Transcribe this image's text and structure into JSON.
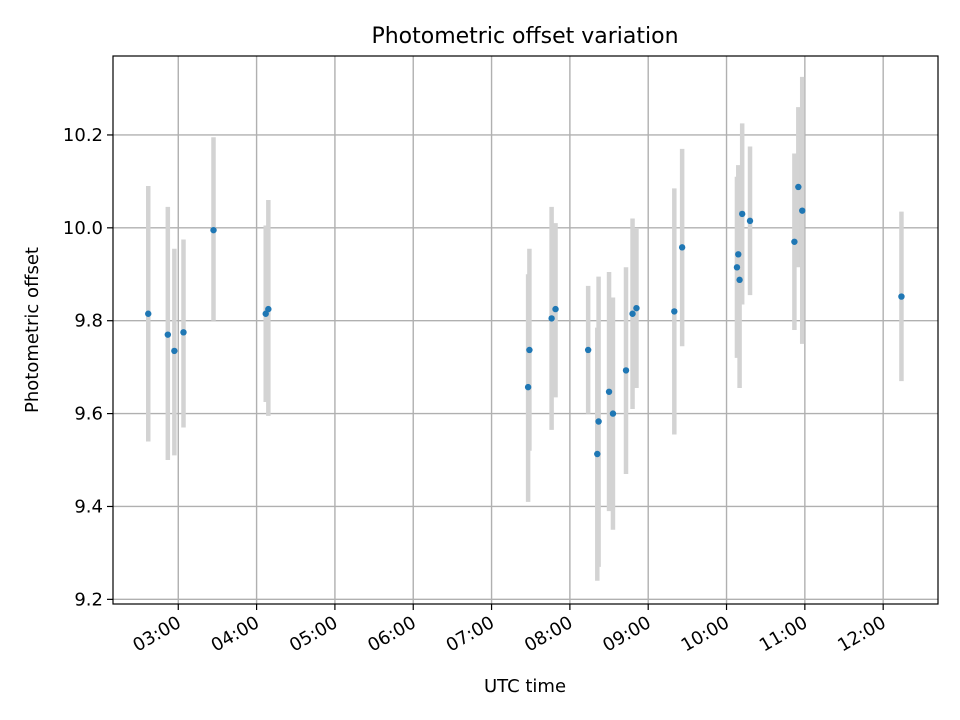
{
  "chart_data": {
    "type": "scatter",
    "title": "Photometric offset variation",
    "xlabel": "UTC time",
    "ylabel": "Photometric offset",
    "xlim": [
      "02:10",
      "12:42"
    ],
    "ylim": [
      9.19,
      10.37
    ],
    "grid": true,
    "x_ticks": [
      "03:00",
      "04:00",
      "05:00",
      "06:00",
      "07:00",
      "08:00",
      "09:00",
      "10:00",
      "11:00",
      "12:00"
    ],
    "y_ticks": [
      "9.2",
      "9.4",
      "9.6",
      "9.8",
      "10.0",
      "10.2"
    ],
    "point_color": "#1f77b4",
    "errorbar_color": "#d3d3d3",
    "points": [
      {
        "x": "02:37",
        "y": 9.815,
        "lo": 9.54,
        "hi": 10.09
      },
      {
        "x": "02:52",
        "y": 9.77,
        "lo": 9.5,
        "hi": 10.045
      },
      {
        "x": "02:57",
        "y": 9.735,
        "lo": 9.51,
        "hi": 9.955
      },
      {
        "x": "03:04",
        "y": 9.775,
        "lo": 9.57,
        "hi": 9.975
      },
      {
        "x": "03:27",
        "y": 9.995,
        "lo": 9.8,
        "hi": 10.195
      },
      {
        "x": "04:07",
        "y": 9.815,
        "lo": 9.625,
        "hi": 10.005
      },
      {
        "x": "04:09",
        "y": 9.825,
        "lo": 9.595,
        "hi": 10.06
      },
      {
        "x": "07:28",
        "y": 9.657,
        "lo": 9.41,
        "hi": 9.9
      },
      {
        "x": "07:29",
        "y": 9.737,
        "lo": 9.52,
        "hi": 9.955
      },
      {
        "x": "07:46",
        "y": 9.805,
        "lo": 9.565,
        "hi": 10.045
      },
      {
        "x": "07:49",
        "y": 9.825,
        "lo": 9.635,
        "hi": 10.01
      },
      {
        "x": "08:14",
        "y": 9.737,
        "lo": 9.6,
        "hi": 9.875
      },
      {
        "x": "08:21",
        "y": 9.513,
        "lo": 9.24,
        "hi": 9.785
      },
      {
        "x": "08:22",
        "y": 9.583,
        "lo": 9.27,
        "hi": 9.895
      },
      {
        "x": "08:30",
        "y": 9.647,
        "lo": 9.39,
        "hi": 9.905
      },
      {
        "x": "08:33",
        "y": 9.6,
        "lo": 9.35,
        "hi": 9.85
      },
      {
        "x": "08:43",
        "y": 9.693,
        "lo": 9.47,
        "hi": 9.915
      },
      {
        "x": "08:48",
        "y": 9.815,
        "lo": 9.61,
        "hi": 10.02
      },
      {
        "x": "08:51",
        "y": 9.827,
        "lo": 9.655,
        "hi": 10.0
      },
      {
        "x": "09:20",
        "y": 9.82,
        "lo": 9.555,
        "hi": 10.085
      },
      {
        "x": "09:26",
        "y": 9.958,
        "lo": 9.745,
        "hi": 10.17
      },
      {
        "x": "10:08",
        "y": 9.915,
        "lo": 9.72,
        "hi": 10.11
      },
      {
        "x": "10:09",
        "y": 9.943,
        "lo": 9.75,
        "hi": 10.135
      },
      {
        "x": "10:10",
        "y": 9.888,
        "lo": 9.655,
        "hi": 10.12
      },
      {
        "x": "10:12",
        "y": 10.03,
        "lo": 9.835,
        "hi": 10.225
      },
      {
        "x": "10:18",
        "y": 10.015,
        "lo": 9.855,
        "hi": 10.175
      },
      {
        "x": "10:52",
        "y": 9.97,
        "lo": 9.78,
        "hi": 10.16
      },
      {
        "x": "10:55",
        "y": 10.088,
        "lo": 9.915,
        "hi": 10.26
      },
      {
        "x": "10:58",
        "y": 10.037,
        "lo": 9.75,
        "hi": 10.325
      },
      {
        "x": "12:14",
        "y": 9.852,
        "lo": 9.67,
        "hi": 10.035
      }
    ]
  }
}
